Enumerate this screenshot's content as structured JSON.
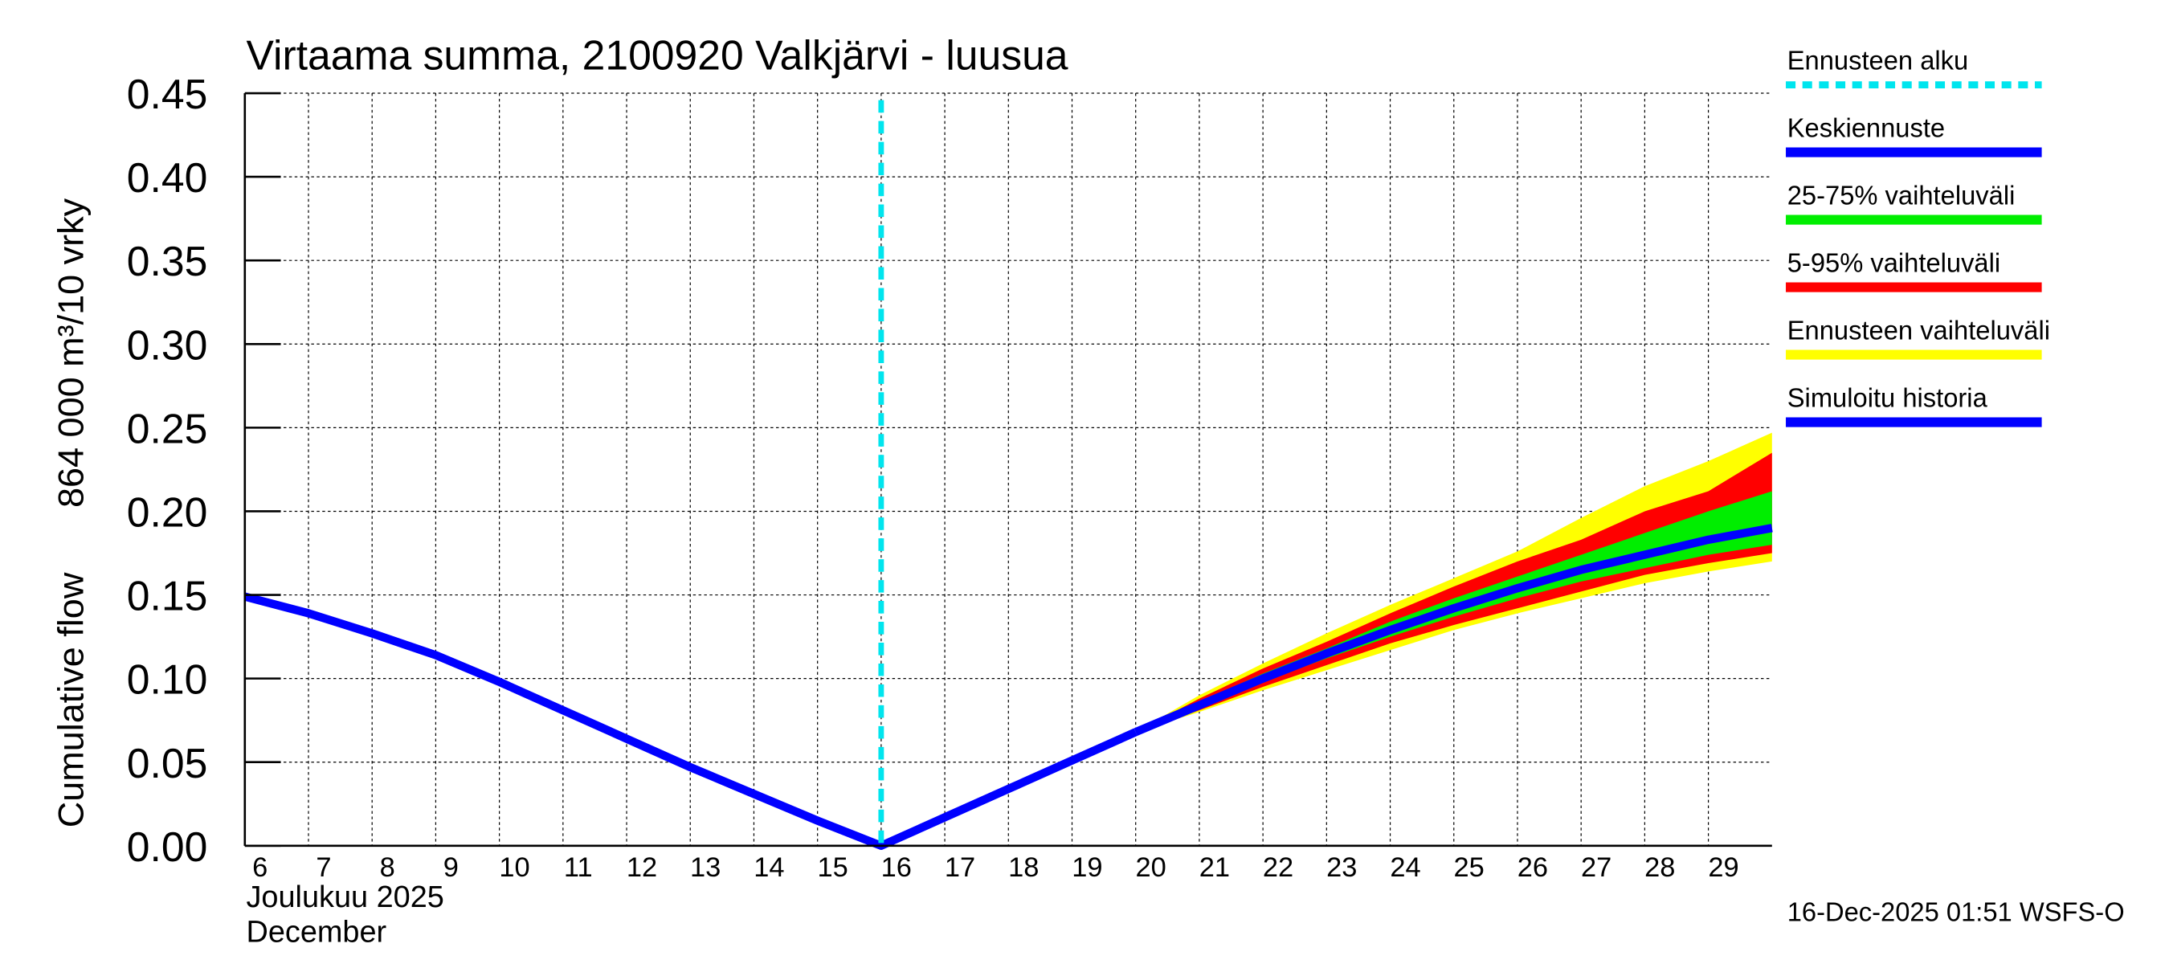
{
  "chart_data": {
    "type": "line",
    "title": "Virtaama summa, 2100920 Valkjärvi - luusua",
    "ylabel_top": "864 000 m³/10 vrky",
    "ylabel_bottom": "Cumulative flow",
    "xlabel_fi": "Joulukuu  2025",
    "xlabel_en": "December",
    "footer": "16-Dec-2025 01:51 WSFS-O",
    "ylim": [
      0,
      0.45
    ],
    "xlim": [
      6,
      30
    ],
    "yticks": [
      "0.00",
      "0.05",
      "0.10",
      "0.15",
      "0.20",
      "0.25",
      "0.30",
      "0.35",
      "0.40",
      "0.45"
    ],
    "xticks": [
      "6",
      "7",
      "8",
      "9",
      "10",
      "11",
      "12",
      "13",
      "14",
      "15",
      "16",
      "17",
      "18",
      "19",
      "20",
      "21",
      "22",
      "23",
      "24",
      "25",
      "26",
      "27",
      "28",
      "29"
    ],
    "grid": true,
    "forecast_start": 16,
    "legend_placement": "right",
    "legend": [
      {
        "label": "Ennusteen alku",
        "color": "#00e5ee",
        "style": "dashed"
      },
      {
        "label": "Keskiennuste",
        "color": "#0000ff",
        "style": "line"
      },
      {
        "label": "25-75% vaihteluväli",
        "color": "#00ee00",
        "style": "band"
      },
      {
        "label": "5-95% vaihteluväli",
        "color": "#ff0000",
        "style": "band"
      },
      {
        "label": "Ennusteen vaihteluväli",
        "color": "#ffff00",
        "style": "band"
      },
      {
        "label": "Simuloitu historia",
        "color": "#0000ff",
        "style": "line"
      }
    ],
    "history": {
      "x": [
        6,
        7,
        8,
        9,
        10,
        11,
        12,
        13,
        14,
        15,
        16,
        17,
        18,
        19,
        20
      ],
      "y": [
        0.149,
        0.139,
        0.127,
        0.114,
        0.098,
        0.081,
        0.064,
        0.047,
        0.031,
        0.015,
        0.0,
        0.017,
        0.034,
        0.051,
        0.068
      ]
    },
    "forecast": {
      "x": [
        20,
        21,
        22,
        23,
        24,
        25,
        26,
        27,
        28,
        29,
        30
      ],
      "median": [
        0.068,
        0.084,
        0.1,
        0.115,
        0.129,
        0.142,
        0.154,
        0.165,
        0.174,
        0.183,
        0.19
      ],
      "range_upper": [
        0.068,
        0.09,
        0.109,
        0.127,
        0.144,
        0.16,
        0.176,
        0.196,
        0.215,
        0.23,
        0.247
      ],
      "range_lower": [
        0.068,
        0.08,
        0.093,
        0.105,
        0.117,
        0.129,
        0.139,
        0.148,
        0.157,
        0.164,
        0.17
      ],
      "p95": [
        0.068,
        0.088,
        0.106,
        0.122,
        0.139,
        0.155,
        0.17,
        0.183,
        0.2,
        0.212,
        0.235
      ],
      "p5": [
        0.068,
        0.081,
        0.095,
        0.108,
        0.121,
        0.132,
        0.142,
        0.152,
        0.162,
        0.169,
        0.175
      ],
      "p75": [
        0.068,
        0.086,
        0.103,
        0.118,
        0.134,
        0.148,
        0.161,
        0.174,
        0.187,
        0.2,
        0.212
      ],
      "p25": [
        0.068,
        0.083,
        0.098,
        0.112,
        0.125,
        0.137,
        0.148,
        0.158,
        0.166,
        0.174,
        0.18
      ]
    }
  }
}
